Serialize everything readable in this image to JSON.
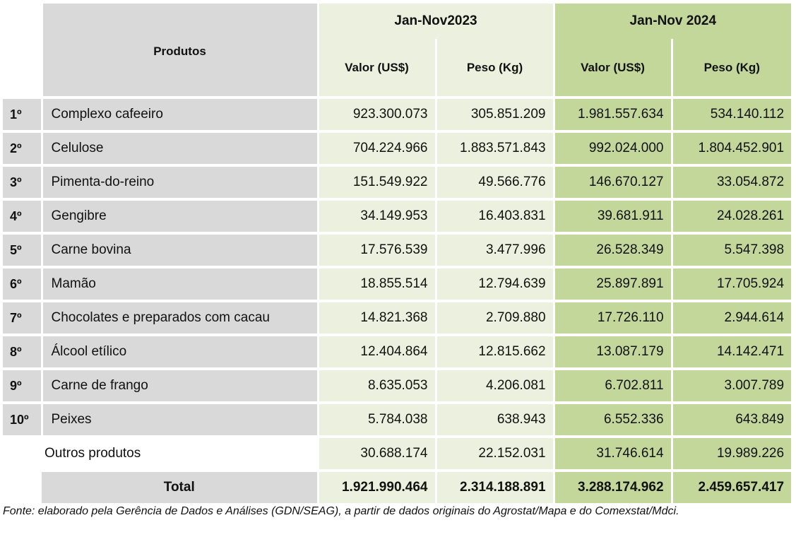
{
  "header": {
    "products_label": "Produtos",
    "period_2023": "Jan-Nov2023",
    "period_2024": "Jan-Nov 2024",
    "valor_2023": "Valor (US$)",
    "peso_2023": "Peso (Kg)",
    "valor_2024": "Valor (US$)",
    "peso_2024": "Peso (Kg)"
  },
  "rows": [
    {
      "rank": "1º",
      "product": "Complexo cafeeiro",
      "v23": "923.300.073",
      "p23": "305.851.209",
      "v24": "1.981.557.634",
      "p24": "534.140.112"
    },
    {
      "rank": "2º",
      "product": "Celulose",
      "v23": "704.224.966",
      "p23": "1.883.571.843",
      "v24": "992.024.000",
      "p24": "1.804.452.901"
    },
    {
      "rank": "3º",
      "product": "Pimenta-do-reino",
      "v23": "151.549.922",
      "p23": "49.566.776",
      "v24": "146.670.127",
      "p24": "33.054.872"
    },
    {
      "rank": "4º",
      "product": "Gengibre",
      "v23": "34.149.953",
      "p23": "16.403.831",
      "v24": "39.681.911",
      "p24": "24.028.261"
    },
    {
      "rank": "5º",
      "product": "Carne bovina",
      "v23": "17.576.539",
      "p23": "3.477.996",
      "v24": "26.528.349",
      "p24": "5.547.398"
    },
    {
      "rank": "6º",
      "product": "Mamão",
      "v23": "18.855.514",
      "p23": "12.794.639",
      "v24": "25.897.891",
      "p24": "17.705.924"
    },
    {
      "rank": "7º",
      "product": "Chocolates e preparados com cacau",
      "v23": "14.821.368",
      "p23": "2.709.880",
      "v24": "17.726.110",
      "p24": "2.944.614"
    },
    {
      "rank": "8º",
      "product": "Álcool etílico",
      "v23": "12.404.864",
      "p23": "12.815.662",
      "v24": "13.087.179",
      "p24": "14.142.471"
    },
    {
      "rank": "9º",
      "product": "Carne de frango",
      "v23": "8.635.053",
      "p23": "4.206.081",
      "v24": "6.702.811",
      "p24": "3.007.789"
    },
    {
      "rank": "10º",
      "product": "Peixes",
      "v23": "5.784.038",
      "p23": "638.943",
      "v24": "6.552.336",
      "p24": "643.849"
    }
  ],
  "others": {
    "product": "Outros produtos",
    "v23": "30.688.174",
    "p23": "22.152.031",
    "v24": "31.746.614",
    "p24": "19.989.226"
  },
  "total": {
    "label": "Total",
    "v23": "1.921.990.464",
    "p23": "2.314.188.891",
    "v24": "3.288.174.962",
    "p24": "2.459.657.417"
  },
  "source": "Fonte: elaborado pela Gerência de Dados e Análises (GDN/SEAG), a partir de dados originais do Agrostat/Mapa e do Comexstat/Mdci.",
  "colors": {
    "gray": "#d9d9d9",
    "light_green": "#ebf1de",
    "dark_green": "#c4d79b"
  }
}
